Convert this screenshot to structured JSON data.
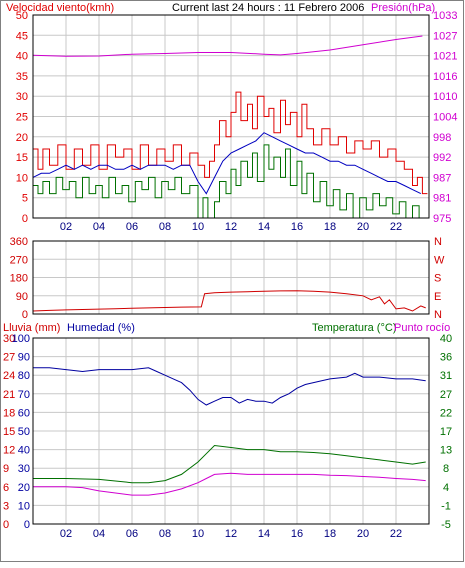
{
  "header": {
    "left_label": "Velocidad viento(kmh)",
    "center_label": "Current last 24 hours : 11 Febrero 2006",
    "right_label": "Presión(hPa)"
  },
  "colors": {
    "wind_max": "#e00000",
    "wind_avg": "#0000c0",
    "wind_min": "#007000",
    "pressure": "#d000d0",
    "direction": "#d00000",
    "rain": "#d00000",
    "humidity": "#0000a0",
    "temperature": "#007000",
    "dewpoint": "#d000d0",
    "grid": "#c8c8c8",
    "frame": "#000000",
    "outer_border": "#808080"
  },
  "x_ticks": [
    "02",
    "04",
    "06",
    "08",
    "10",
    "12",
    "14",
    "16",
    "18",
    "20",
    "22"
  ],
  "chart_data": [
    {
      "type": "line",
      "name": "wind-pressure",
      "left_axis": {
        "label": "Velocidad viento(kmh)",
        "ticks": [
          "0",
          "5",
          "10",
          "15",
          "20",
          "25",
          "30",
          "35",
          "40",
          "45",
          "50"
        ],
        "ylim": [
          0,
          50
        ]
      },
      "right_axis": {
        "label": "Presión(hPa)",
        "ticks": [
          "975",
          "981",
          "987",
          "992",
          "998",
          "1004",
          "1010",
          "1016",
          "1021",
          "1027",
          "1033"
        ],
        "ylim": [
          975,
          1033
        ]
      },
      "x": {
        "ticks": [
          "02",
          "04",
          "06",
          "08",
          "10",
          "12",
          "14",
          "16",
          "18",
          "20",
          "22"
        ],
        "xlim": [
          0,
          24
        ]
      },
      "grid": true,
      "series": [
        {
          "key": "wind_max",
          "axis": "left",
          "step": true,
          "x": [
            0,
            0.3,
            0.6,
            1,
            1.5,
            2,
            2.5,
            3,
            3.5,
            4,
            4.5,
            5,
            5.5,
            6,
            6.5,
            7,
            7.5,
            8,
            8.5,
            9,
            9.5,
            10,
            10.4,
            10.7,
            11,
            11.3,
            11.7,
            12,
            12.3,
            12.6,
            13,
            13.3,
            13.6,
            14,
            14.3,
            14.6,
            15,
            15.3,
            15.6,
            16,
            16.3,
            16.6,
            17,
            17.5,
            18,
            18.5,
            19,
            19.5,
            20,
            20.5,
            21,
            21.5,
            22,
            22.5,
            23,
            23.3,
            23.6
          ],
          "y": [
            17,
            12,
            17,
            13,
            18,
            12,
            17,
            13,
            18,
            12,
            18,
            15,
            17,
            12,
            18,
            13,
            17,
            14,
            18,
            13,
            16,
            13,
            10,
            14,
            18,
            24,
            20,
            26,
            31,
            24,
            28,
            22,
            30,
            25,
            27,
            21,
            29,
            23,
            26,
            20,
            28,
            22,
            18,
            22,
            18,
            20,
            16,
            19,
            17,
            19,
            15,
            17,
            14,
            12,
            8,
            10,
            6
          ]
        },
        {
          "key": "wind_avg",
          "axis": "left",
          "step": false,
          "x": [
            0,
            0.5,
            1,
            1.5,
            2,
            2.5,
            3,
            3.5,
            4,
            4.5,
            5,
            5.5,
            6,
            6.5,
            7,
            7.5,
            8,
            8.5,
            9,
            9.5,
            10,
            10.5,
            11,
            11.5,
            12,
            12.5,
            13,
            13.5,
            14,
            14.5,
            15,
            15.5,
            16,
            16.5,
            17,
            17.5,
            18,
            18.5,
            19,
            19.5,
            20,
            20.5,
            21,
            21.5,
            22,
            22.5,
            23,
            23.5
          ],
          "y": [
            10,
            11,
            11,
            12,
            13,
            12,
            13,
            12,
            13,
            13,
            12,
            12,
            13,
            12,
            13,
            13,
            13,
            12,
            13,
            13,
            9,
            6,
            10,
            14,
            16,
            17,
            18,
            19,
            21,
            20,
            19,
            18,
            17,
            16,
            16,
            15,
            14,
            14,
            13,
            13,
            12,
            11,
            10,
            9,
            9,
            8,
            7,
            6
          ]
        },
        {
          "key": "wind_min",
          "axis": "left",
          "step": true,
          "x": [
            0,
            0.3,
            0.6,
            1,
            1.4,
            1.8,
            2.2,
            2.6,
            3,
            3.4,
            3.8,
            4.2,
            4.6,
            5,
            5.4,
            5.8,
            6.2,
            6.6,
            7,
            7.4,
            7.8,
            8.2,
            8.6,
            9,
            9.5,
            10,
            10.3,
            10.6,
            11,
            11.3,
            11.7,
            12,
            12.3,
            12.6,
            13,
            13.3,
            13.6,
            14,
            14.3,
            14.6,
            15,
            15.3,
            15.6,
            16,
            16.3,
            16.6,
            17,
            17.4,
            17.8,
            18.2,
            18.6,
            19,
            19.4,
            19.8,
            20.2,
            20.6,
            21,
            21.4,
            21.8,
            22.2,
            22.6,
            23,
            23.4
          ],
          "y": [
            8,
            6,
            9,
            6,
            10,
            7,
            9,
            5,
            10,
            6,
            8,
            5,
            10,
            6,
            8,
            4,
            9,
            7,
            10,
            5,
            9,
            7,
            10,
            6,
            8,
            0,
            5,
            0,
            4,
            9,
            6,
            12,
            8,
            14,
            10,
            16,
            9,
            18,
            12,
            15,
            10,
            17,
            8,
            14,
            6,
            11,
            4,
            9,
            3,
            7,
            2,
            6,
            0,
            5,
            2,
            6,
            3,
            5,
            1,
            4,
            0,
            3,
            0
          ]
        },
        {
          "key": "pressure",
          "axis": "right",
          "step": false,
          "x": [
            0,
            2,
            4,
            6,
            8,
            10,
            12,
            14,
            15,
            16,
            18,
            20,
            22,
            23.6
          ],
          "y": [
            1021.5,
            1021.2,
            1021.3,
            1021.8,
            1022,
            1022.3,
            1022.3,
            1021.8,
            1021.6,
            1022,
            1023,
            1024.5,
            1026,
            1027
          ]
        }
      ]
    },
    {
      "type": "line",
      "name": "wind-direction",
      "left_axis": {
        "ticks": [
          "360",
          "270",
          "180",
          "90",
          "0"
        ],
        "ylim": [
          0,
          360
        ]
      },
      "right_axis": {
        "ticks": [
          "N",
          "W",
          "S",
          "E",
          "N"
        ]
      },
      "x": {
        "xlim": [
          0,
          24
        ]
      },
      "grid": true,
      "series": [
        {
          "key": "direction",
          "x": [
            0,
            1,
            2,
            3,
            4,
            5,
            6,
            7,
            8,
            9,
            10.2,
            10.4,
            11,
            12,
            13,
            14,
            15,
            16,
            17,
            18,
            19,
            20,
            20.5,
            21,
            21.3,
            21.6,
            22,
            22.5,
            23,
            23.5,
            23.8
          ],
          "y": [
            15,
            18,
            20,
            22,
            24,
            26,
            28,
            30,
            32,
            34,
            35,
            100,
            105,
            108,
            110,
            112,
            114,
            115,
            112,
            108,
            100,
            90,
            70,
            85,
            50,
            70,
            25,
            30,
            15,
            40,
            30
          ]
        }
      ]
    },
    {
      "type": "line",
      "name": "rain-humidity-temperature",
      "left_axis_rain": {
        "label": "Lluvia (mm)",
        "ticks": [
          "0",
          "3",
          "6",
          "9",
          "12",
          "15",
          "18",
          "21",
          "24",
          "27",
          "30"
        ],
        "ylim": [
          0,
          30
        ]
      },
      "left_axis_humidity": {
        "label": "Humedad (%)",
        "ticks": [
          "0",
          "10",
          "20",
          "30",
          "40",
          "50",
          "60",
          "70",
          "80",
          "90",
          "100"
        ],
        "ylim": [
          0,
          100
        ]
      },
      "right_axis": {
        "label_temp": "Temperatura (°C)",
        "label_dew": "Punto rocío",
        "ticks": [
          "-5",
          "-1",
          "4",
          "8",
          "13",
          "17",
          "22",
          "27",
          "31",
          "36",
          "40"
        ],
        "ylim": [
          -5,
          40
        ]
      },
      "x": {
        "ticks": [
          "02",
          "04",
          "06",
          "08",
          "10",
          "12",
          "14",
          "16",
          "18",
          "20",
          "22"
        ],
        "xlim": [
          0,
          24
        ]
      },
      "grid": true,
      "series": [
        {
          "key": "rain",
          "axis": "rain",
          "x": [
            0,
            24
          ],
          "y": [
            0,
            0
          ]
        },
        {
          "key": "humidity",
          "axis": "humidity",
          "x": [
            0,
            1,
            2,
            3,
            4,
            5,
            6,
            7,
            7.5,
            8,
            8.5,
            9,
            9.5,
            10,
            10.5,
            11,
            11.5,
            12,
            12.5,
            13,
            13.5,
            14,
            14.5,
            15,
            15.5,
            16,
            16.5,
            17,
            18,
            19,
            19.5,
            20,
            21,
            22,
            23,
            23.8
          ],
          "y": [
            84,
            84,
            83,
            82,
            83,
            83,
            83,
            84,
            82,
            80,
            78,
            76,
            72,
            67,
            64,
            66,
            68,
            68,
            65,
            67,
            66,
            66,
            65,
            68,
            70,
            73,
            75,
            76,
            78,
            79,
            81,
            79,
            79,
            78,
            78,
            77
          ]
        },
        {
          "key": "temperature",
          "axis": "temp",
          "x": [
            0,
            2,
            4,
            6,
            7,
            8,
            9,
            10,
            10.5,
            11,
            12,
            13,
            14,
            15,
            16,
            17,
            18,
            19,
            20,
            21,
            22,
            23,
            23.8
          ],
          "y": [
            6,
            6,
            5.8,
            5,
            5,
            5.5,
            7,
            10,
            12,
            14,
            13.5,
            13,
            13,
            12.5,
            12.5,
            12.3,
            12,
            11.5,
            11,
            10.5,
            10,
            9.5,
            10
          ]
        },
        {
          "key": "dewpoint",
          "axis": "temp",
          "x": [
            0,
            2,
            3,
            4,
            5,
            6,
            7,
            8,
            9,
            10,
            10.5,
            11,
            12,
            13,
            14,
            15,
            16,
            17,
            18,
            19,
            20,
            21,
            22,
            23,
            23.8
          ],
          "y": [
            4,
            4,
            3.8,
            3,
            2.5,
            2,
            2,
            2.5,
            3.5,
            5,
            6,
            7,
            7.3,
            7,
            7,
            7,
            7,
            7,
            6.8,
            6.7,
            6.5,
            6.3,
            6,
            5.8,
            5.5
          ]
        }
      ]
    }
  ]
}
